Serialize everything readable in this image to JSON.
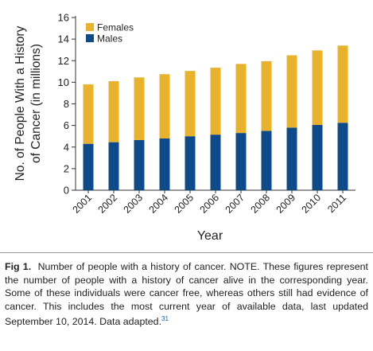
{
  "chart_data": {
    "type": "stacked_bar",
    "y_label": [
      "No. of People With a History",
      "of Cancer (in millions)"
    ],
    "x_label": "Year",
    "categories": [
      "2001",
      "2002",
      "2003",
      "2004",
      "2005",
      "2006",
      "2007",
      "2008",
      "2009",
      "2010",
      "2011"
    ],
    "series": [
      {
        "name": "Males",
        "color": "#0d4a8a",
        "values": [
          4.3,
          4.45,
          4.65,
          4.8,
          5.0,
          5.15,
          5.3,
          5.5,
          5.8,
          6.05,
          6.25
        ]
      },
      {
        "name": "Females",
        "color": "#e9b22c",
        "values": [
          5.5,
          5.65,
          5.8,
          5.95,
          6.05,
          6.2,
          6.4,
          6.45,
          6.7,
          6.9,
          7.15
        ]
      }
    ],
    "ylim": [
      0,
      16
    ],
    "yticks": [
      0,
      2,
      4,
      6,
      8,
      10,
      12,
      14,
      16
    ],
    "legend": "upper left"
  },
  "caption": {
    "label": "Fig 1.",
    "text": "Number of people with a history of cancer. NOTE. These figures represent the number of people with a history of cancer alive in the corresponding year. Some of these individuals were cancer free, whereas others still had evidence of cancer. This includes the most current year of available data, last updated September 10, 2014. Data adapted.",
    "ref": "31"
  }
}
